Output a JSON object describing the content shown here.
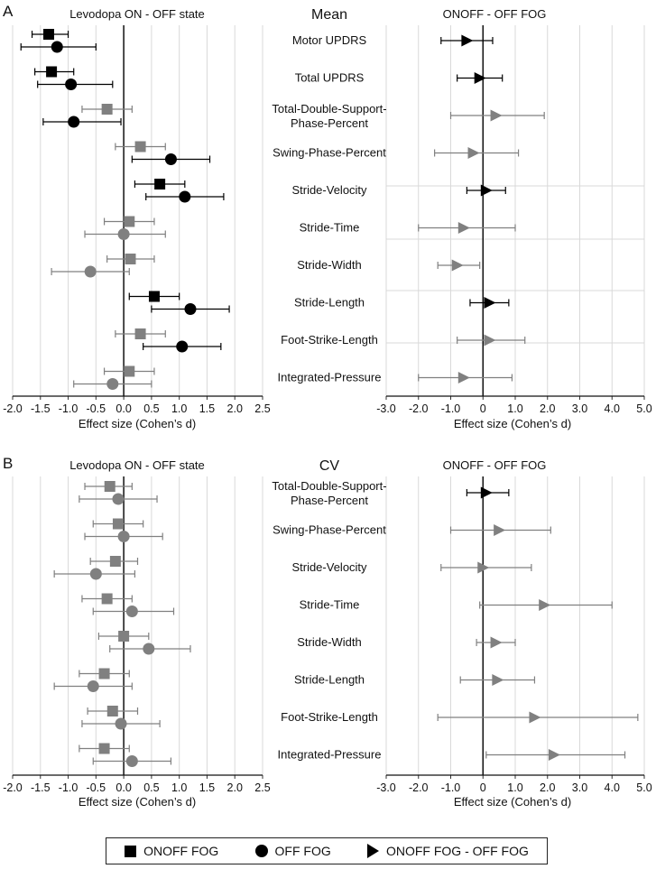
{
  "chart_data": [
    {
      "panel": "A",
      "type": "forest",
      "section_title": "Mean",
      "left": {
        "title": "Levodopa ON - OFF state",
        "xlabel": "Effect size (Cohen’s d)",
        "xlim": [
          -2.0,
          2.5
        ],
        "ticks": [
          "-2.0",
          "-1.5",
          "-1.0",
          "-0.5",
          "0.0",
          "0.5",
          "1.0",
          "1.5",
          "2.0",
          "2.5"
        ],
        "rows": [
          {
            "label": "Motor UPDRS",
            "significant": true,
            "onoff": {
              "est": -1.35,
              "lo": -1.65,
              "hi": -1.0
            },
            "off": {
              "est": -1.2,
              "lo": -1.85,
              "hi": -0.5
            }
          },
          {
            "label": "Total UPDRS",
            "significant": true,
            "onoff": {
              "est": -1.3,
              "lo": -1.6,
              "hi": -0.9
            },
            "off": {
              "est": -0.95,
              "lo": -1.55,
              "hi": -0.2
            }
          },
          {
            "label": "Total-Double-Support-Phase-Percent",
            "significant": false,
            "onoff": {
              "est": -0.3,
              "lo": -0.75,
              "hi": 0.15
            },
            "off": {
              "est": -0.9,
              "lo": -1.45,
              "hi": -0.05
            },
            "off_significant": true
          },
          {
            "label": "Swing-Phase-Percent",
            "significant": false,
            "onoff": {
              "est": 0.3,
              "lo": -0.15,
              "hi": 0.75
            },
            "off": {
              "est": 0.85,
              "lo": 0.15,
              "hi": 1.55
            },
            "off_significant": true
          },
          {
            "label": "Stride-Velocity",
            "significant": true,
            "onoff": {
              "est": 0.65,
              "lo": 0.2,
              "hi": 1.1
            },
            "off": {
              "est": 1.1,
              "lo": 0.4,
              "hi": 1.8
            }
          },
          {
            "label": "Stride-Time",
            "significant": false,
            "onoff": {
              "est": 0.1,
              "lo": -0.35,
              "hi": 0.55
            },
            "off": {
              "est": 0.0,
              "lo": -0.7,
              "hi": 0.75
            }
          },
          {
            "label": "Stride-Width",
            "significant": false,
            "onoff": {
              "est": 0.12,
              "lo": -0.3,
              "hi": 0.55
            },
            "off": {
              "est": -0.6,
              "lo": -1.3,
              "hi": 0.1
            }
          },
          {
            "label": "Stride-Length",
            "significant": true,
            "onoff": {
              "est": 0.55,
              "lo": 0.1,
              "hi": 1.0
            },
            "off": {
              "est": 1.2,
              "lo": 0.5,
              "hi": 1.9
            }
          },
          {
            "label": "Foot-Strike-Length",
            "significant": false,
            "onoff": {
              "est": 0.3,
              "lo": -0.15,
              "hi": 0.75
            },
            "off": {
              "est": 1.05,
              "lo": 0.35,
              "hi": 1.75
            },
            "off_significant": true
          },
          {
            "label": "Integrated-Pressure",
            "significant": false,
            "onoff": {
              "est": 0.1,
              "lo": -0.35,
              "hi": 0.55
            },
            "off": {
              "est": -0.2,
              "lo": -0.9,
              "hi": 0.5
            }
          }
        ]
      },
      "right": {
        "title": "ONOFF - OFF FOG",
        "xlabel": "Effect size (Cohen’s d)",
        "xlim": [
          -3.0,
          5.0
        ],
        "ticks": [
          "-3.0",
          "-2.0",
          "-1.0",
          "0",
          "1.0",
          "2.0",
          "3.0",
          "4.0",
          "5.0"
        ],
        "rows": [
          {
            "est": -0.5,
            "lo": -1.3,
            "hi": 0.3,
            "significant": true
          },
          {
            "est": -0.1,
            "lo": -0.8,
            "hi": 0.6,
            "significant": true
          },
          {
            "est": 0.4,
            "lo": -1.0,
            "hi": 1.9,
            "significant": false
          },
          {
            "est": -0.3,
            "lo": -1.5,
            "hi": 1.1,
            "significant": false
          },
          {
            "est": 0.1,
            "lo": -0.5,
            "hi": 0.7,
            "significant": true
          },
          {
            "est": -0.6,
            "lo": -2.0,
            "hi": 1.0,
            "significant": false
          },
          {
            "est": -0.8,
            "lo": -1.4,
            "hi": -0.1,
            "significant": false
          },
          {
            "est": 0.2,
            "lo": -0.4,
            "hi": 0.8,
            "significant": true
          },
          {
            "est": 0.2,
            "lo": -0.8,
            "hi": 1.3,
            "significant": false
          },
          {
            "est": -0.6,
            "lo": -2.0,
            "hi": 0.9,
            "significant": false
          }
        ]
      }
    },
    {
      "panel": "B",
      "type": "forest",
      "section_title": "CV",
      "left": {
        "title": "Levodopa ON - OFF state",
        "xlabel": "Effect size (Cohen’s d)",
        "xlim": [
          -2.0,
          2.5
        ],
        "ticks": [
          "-2.0",
          "-1.5",
          "-1.0",
          "-0.5",
          "0.0",
          "0.5",
          "1.0",
          "1.5",
          "2.0",
          "2.5"
        ],
        "rows": [
          {
            "label": "Total-Double-Support-Phase-Percent",
            "significant": false,
            "onoff": {
              "est": -0.25,
              "lo": -0.7,
              "hi": 0.15
            },
            "off": {
              "est": -0.1,
              "lo": -0.8,
              "hi": 0.6
            }
          },
          {
            "label": "Swing-Phase-Percent",
            "significant": false,
            "onoff": {
              "est": -0.1,
              "lo": -0.55,
              "hi": 0.35
            },
            "off": {
              "est": 0.0,
              "lo": -0.7,
              "hi": 0.7
            }
          },
          {
            "label": "Stride-Velocity",
            "significant": false,
            "onoff": {
              "est": -0.15,
              "lo": -0.6,
              "hi": 0.25
            },
            "off": {
              "est": -0.5,
              "lo": -1.25,
              "hi": 0.2
            }
          },
          {
            "label": "Stride-Time",
            "significant": false,
            "onoff": {
              "est": -0.3,
              "lo": -0.75,
              "hi": 0.15
            },
            "off": {
              "est": 0.15,
              "lo": -0.55,
              "hi": 0.9
            }
          },
          {
            "label": "Stride-Width",
            "significant": false,
            "onoff": {
              "est": 0.0,
              "lo": -0.45,
              "hi": 0.45
            },
            "off": {
              "est": 0.45,
              "lo": -0.25,
              "hi": 1.2
            }
          },
          {
            "label": "Stride-Length",
            "significant": false,
            "onoff": {
              "est": -0.35,
              "lo": -0.8,
              "hi": 0.1
            },
            "off": {
              "est": -0.55,
              "lo": -1.25,
              "hi": 0.15
            }
          },
          {
            "label": "Foot-Strike-Length",
            "significant": false,
            "onoff": {
              "est": -0.2,
              "lo": -0.65,
              "hi": 0.25
            },
            "off": {
              "est": -0.05,
              "lo": -0.75,
              "hi": 0.65
            }
          },
          {
            "label": "Integrated-Pressure",
            "significant": false,
            "onoff": {
              "est": -0.35,
              "lo": -0.8,
              "hi": 0.1
            },
            "off": {
              "est": 0.15,
              "lo": -0.55,
              "hi": 0.85
            }
          }
        ]
      },
      "right": {
        "title": "ONOFF - OFF FOG",
        "xlabel": "Effect size (Cohen’s d)",
        "xlim": [
          -3.0,
          5.0
        ],
        "ticks": [
          "-3.0",
          "-2.0",
          "-1.0",
          "0",
          "1.0",
          "2.0",
          "3.0",
          "4.0",
          "5.0"
        ],
        "rows": [
          {
            "est": 0.1,
            "lo": -0.5,
            "hi": 0.8,
            "significant": true
          },
          {
            "est": 0.5,
            "lo": -1.0,
            "hi": 2.1,
            "significant": false
          },
          {
            "est": 0.0,
            "lo": -1.3,
            "hi": 1.5,
            "significant": false
          },
          {
            "est": 1.9,
            "lo": -0.1,
            "hi": 4.0,
            "significant": false
          },
          {
            "est": 0.4,
            "lo": -0.2,
            "hi": 1.0,
            "significant": false
          },
          {
            "est": 0.45,
            "lo": -0.7,
            "hi": 1.6,
            "significant": false
          },
          {
            "est": 1.6,
            "lo": -1.4,
            "hi": 4.8,
            "significant": false
          },
          {
            "est": 2.2,
            "lo": 0.1,
            "hi": 4.4,
            "significant": false
          }
        ]
      }
    }
  ],
  "legend": {
    "onoff_fog": "ONOFF FOG",
    "off_fog": "OFF FOG",
    "diff": "ONOFF FOG - OFF FOG"
  },
  "colors": {
    "significant": "#000000",
    "nonsignificant": "#808080",
    "grid": "#d9d9d9"
  }
}
